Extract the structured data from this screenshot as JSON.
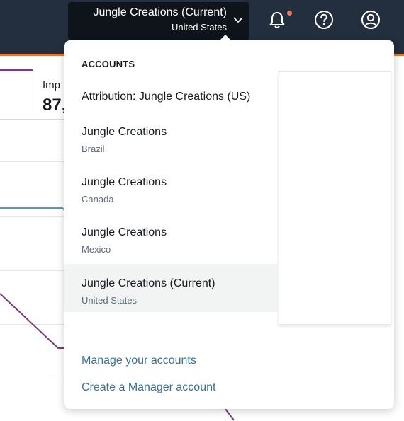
{
  "header": {
    "account_name": "Jungle Creations (Current)",
    "account_region": "United States",
    "icons": [
      "chevron-down-icon",
      "bell-icon",
      "help-icon",
      "user-icon"
    ],
    "colors": {
      "bar": "#232f3e",
      "accent": "#e0783a",
      "notification_dot": "#e8804b"
    }
  },
  "dashboard": {
    "metric_label": "Imp",
    "metric_value": "87,",
    "series_colors": [
      "#7b3d7a",
      "#5b9aa8"
    ]
  },
  "dropdown": {
    "heading": "ACCOUNTS",
    "accounts": [
      {
        "name": "Attribution: Jungle Creations (US)",
        "region": "",
        "current": false
      },
      {
        "name": "Jungle Creations",
        "region": "Brazil",
        "current": false
      },
      {
        "name": "Jungle Creations",
        "region": "Canada",
        "current": false
      },
      {
        "name": "Jungle Creations",
        "region": "Mexico",
        "current": false
      },
      {
        "name": "Jungle Creations (Current)",
        "region": "United States",
        "current": true
      }
    ],
    "links": [
      "Manage your accounts",
      "Create a Manager account"
    ]
  }
}
